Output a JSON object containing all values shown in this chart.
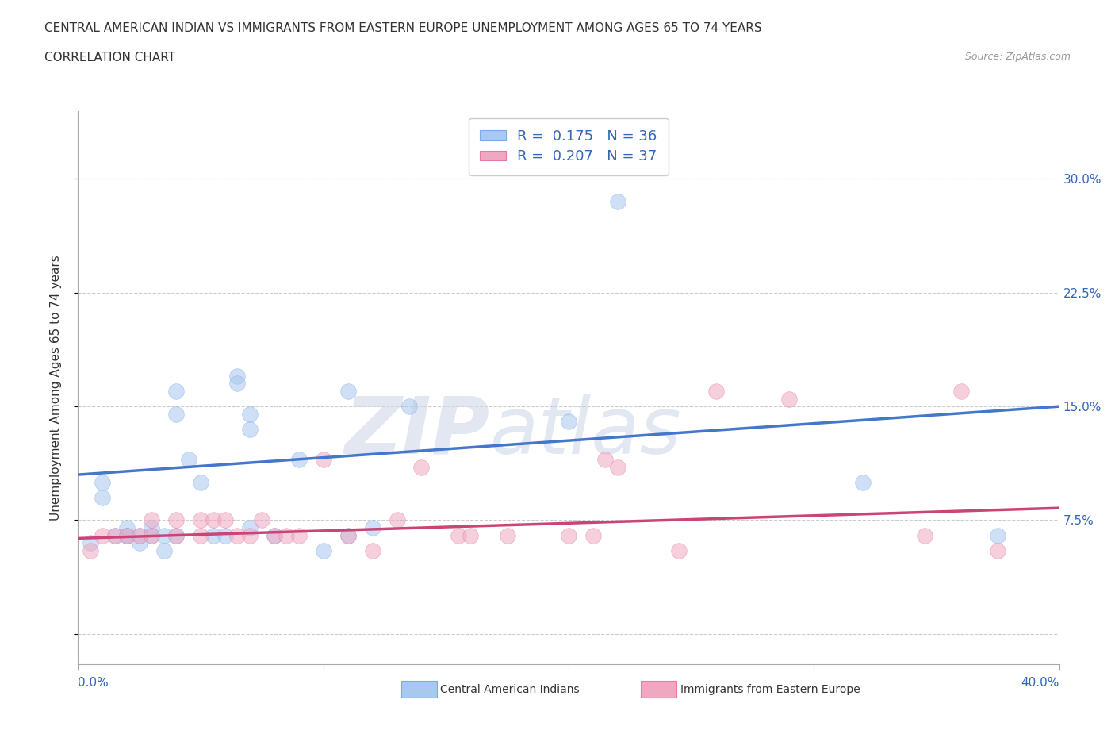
{
  "title_line1": "CENTRAL AMERICAN INDIAN VS IMMIGRANTS FROM EASTERN EUROPE UNEMPLOYMENT AMONG AGES 65 TO 74 YEARS",
  "title_line2": "CORRELATION CHART",
  "source_text": "Source: ZipAtlas.com",
  "ylabel": "Unemployment Among Ages 65 to 74 years",
  "xlim": [
    0.0,
    0.4
  ],
  "ylim": [
    -0.02,
    0.345
  ],
  "xticks": [
    0.0,
    0.1,
    0.2,
    0.3,
    0.4
  ],
  "xtick_labels_bottom": [
    "0.0%",
    "",
    "",
    "",
    "40.0%"
  ],
  "ytick_values": [
    0.0,
    0.075,
    0.15,
    0.225,
    0.3
  ],
  "ytick_labels": [
    "",
    "7.5%",
    "15.0%",
    "22.5%",
    "30.0%"
  ],
  "blue_r": 0.175,
  "blue_n": 36,
  "pink_r": 0.207,
  "pink_n": 37,
  "blue_color": "#a8c8f0",
  "pink_color": "#f0a8c0",
  "blue_edge_color": "#7aaae8",
  "pink_edge_color": "#e87aaa",
  "blue_line_color": "#4477cc",
  "pink_line_color": "#cc4477",
  "watermark_zip": "ZIP",
  "watermark_atlas": "atlas",
  "legend_label_blue": "Central American Indians",
  "legend_label_pink": "Immigrants from Eastern Europe",
  "blue_scatter_x": [
    0.005,
    0.01,
    0.01,
    0.015,
    0.02,
    0.02,
    0.02,
    0.025,
    0.025,
    0.03,
    0.03,
    0.035,
    0.035,
    0.04,
    0.04,
    0.04,
    0.045,
    0.05,
    0.055,
    0.06,
    0.065,
    0.065,
    0.07,
    0.07,
    0.07,
    0.08,
    0.09,
    0.1,
    0.11,
    0.11,
    0.12,
    0.135,
    0.2,
    0.22,
    0.32,
    0.375
  ],
  "blue_scatter_y": [
    0.06,
    0.1,
    0.09,
    0.065,
    0.065,
    0.07,
    0.065,
    0.065,
    0.06,
    0.07,
    0.065,
    0.065,
    0.055,
    0.145,
    0.16,
    0.065,
    0.115,
    0.1,
    0.065,
    0.065,
    0.17,
    0.165,
    0.145,
    0.135,
    0.07,
    0.065,
    0.115,
    0.055,
    0.16,
    0.065,
    0.07,
    0.15,
    0.14,
    0.285,
    0.1,
    0.065
  ],
  "pink_scatter_x": [
    0.005,
    0.01,
    0.015,
    0.02,
    0.025,
    0.03,
    0.03,
    0.04,
    0.04,
    0.05,
    0.05,
    0.055,
    0.06,
    0.065,
    0.07,
    0.075,
    0.08,
    0.085,
    0.09,
    0.1,
    0.11,
    0.12,
    0.13,
    0.14,
    0.155,
    0.16,
    0.175,
    0.2,
    0.21,
    0.215,
    0.22,
    0.245,
    0.26,
    0.29,
    0.345,
    0.36,
    0.375
  ],
  "pink_scatter_y": [
    0.055,
    0.065,
    0.065,
    0.065,
    0.065,
    0.075,
    0.065,
    0.065,
    0.075,
    0.075,
    0.065,
    0.075,
    0.075,
    0.065,
    0.065,
    0.075,
    0.065,
    0.065,
    0.065,
    0.115,
    0.065,
    0.055,
    0.075,
    0.11,
    0.065,
    0.065,
    0.065,
    0.065,
    0.065,
    0.115,
    0.11,
    0.055,
    0.16,
    0.155,
    0.065,
    0.16,
    0.055
  ],
  "blue_trend_x": [
    0.0,
    0.4
  ],
  "blue_trend_y": [
    0.105,
    0.15
  ],
  "pink_trend_x": [
    0.0,
    0.4
  ],
  "pink_trend_y": [
    0.063,
    0.083
  ],
  "grid_color": "#cccccc",
  "background_color": "#ffffff",
  "scatter_size": 200,
  "scatter_alpha": 0.55,
  "title_fontsize": 11,
  "axis_label_fontsize": 11,
  "tick_fontsize": 11,
  "legend_fontsize": 13,
  "right_tick_color": "#3366bb"
}
